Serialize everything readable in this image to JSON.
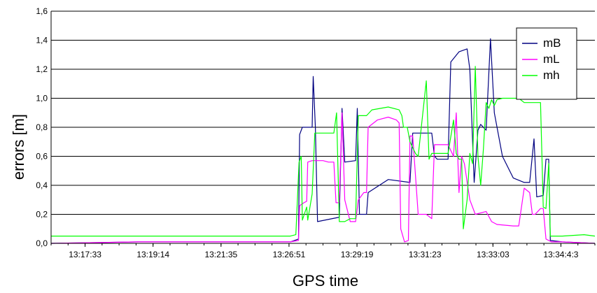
{
  "chart_data": {
    "type": "line",
    "xlabel": "GPS time",
    "ylabel": "errors [m]",
    "ylim": [
      0,
      1.6
    ],
    "yticks": [
      "0,0",
      "0,2",
      "0,4",
      "0,6",
      "0,8",
      "1,0",
      "1,2",
      "1,4",
      "1,6"
    ],
    "xticks": [
      "13:17:33",
      "13:19:14",
      "13:21:35",
      "13:26:51",
      "13:29:19",
      "13:31:23",
      "13:33:03",
      "13:34:4:3"
    ],
    "grid": "horizontal",
    "legend_position": "top-right",
    "series": [
      {
        "name": "mB",
        "color": "#000080",
        "points": [
          [
            0,
            0
          ],
          [
            0.16,
            0.01
          ],
          [
            0.44,
            0.01
          ],
          [
            0.455,
            0.03
          ],
          [
            0.457,
            0.75
          ],
          [
            0.462,
            0.8
          ],
          [
            0.48,
            0.8
          ],
          [
            0.482,
            1.15
          ],
          [
            0.486,
            0.8
          ],
          [
            0.49,
            0.15
          ],
          [
            0.53,
            0.18
          ],
          [
            0.535,
            0.93
          ],
          [
            0.54,
            0.56
          ],
          [
            0.56,
            0.57
          ],
          [
            0.563,
            0.93
          ],
          [
            0.567,
            0.2
          ],
          [
            0.58,
            0.2
          ],
          [
            0.583,
            0.35
          ],
          [
            0.62,
            0.44
          ],
          [
            0.66,
            0.42
          ],
          [
            0.665,
            0.76
          ],
          [
            0.7,
            0.76
          ],
          [
            0.705,
            0.6
          ],
          [
            0.71,
            0.58
          ],
          [
            0.73,
            0.58
          ],
          [
            0.735,
            1.25
          ],
          [
            0.75,
            1.32
          ],
          [
            0.765,
            1.34
          ],
          [
            0.77,
            1.2
          ],
          [
            0.778,
            0.42
          ],
          [
            0.785,
            0.78
          ],
          [
            0.79,
            0.82
          ],
          [
            0.8,
            0.78
          ],
          [
            0.808,
            1.41
          ],
          [
            0.815,
            0.9
          ],
          [
            0.83,
            0.6
          ],
          [
            0.85,
            0.45
          ],
          [
            0.87,
            0.42
          ],
          [
            0.88,
            0.42
          ],
          [
            0.888,
            0.72
          ],
          [
            0.893,
            0.32
          ],
          [
            0.905,
            0.33
          ],
          [
            0.91,
            0.58
          ],
          [
            0.915,
            0.58
          ],
          [
            0.918,
            0.02
          ],
          [
            0.94,
            0.01
          ],
          [
            1,
            0
          ]
        ]
      },
      {
        "name": "mL",
        "color": "#ff00ff",
        "points": [
          [
            0,
            0
          ],
          [
            0.16,
            0.01
          ],
          [
            0.44,
            0.01
          ],
          [
            0.455,
            0.02
          ],
          [
            0.457,
            0.26
          ],
          [
            0.465,
            0.28
          ],
          [
            0.47,
            0.29
          ],
          [
            0.472,
            0.56
          ],
          [
            0.48,
            0.57
          ],
          [
            0.5,
            0.57
          ],
          [
            0.51,
            0.56
          ],
          [
            0.52,
            0.56
          ],
          [
            0.524,
            0.28
          ],
          [
            0.53,
            0.28
          ],
          [
            0.535,
            0.9
          ],
          [
            0.54,
            0.3
          ],
          [
            0.55,
            0.15
          ],
          [
            0.56,
            0.15
          ],
          [
            0.565,
            0.3
          ],
          [
            0.575,
            0.35
          ],
          [
            0.58,
            0.35
          ],
          [
            0.583,
            0.8
          ],
          [
            0.6,
            0.85
          ],
          [
            0.62,
            0.87
          ],
          [
            0.635,
            0.85
          ],
          [
            0.64,
            0.83
          ],
          [
            0.643,
            0.1
          ],
          [
            0.65,
            0.01
          ],
          [
            0.657,
            0.02
          ],
          [
            0.66,
            0.74
          ],
          [
            0.665,
            0.74
          ],
          [
            0.675,
            0.2
          ],
          [
            0.69,
            0.2
          ],
          [
            0.7,
            0.17
          ],
          [
            0.705,
            0.68
          ],
          [
            0.73,
            0.68
          ],
          [
            0.74,
            0.6
          ],
          [
            0.745,
            0.9
          ],
          [
            0.75,
            0.35
          ],
          [
            0.755,
            0.6
          ],
          [
            0.76,
            0.55
          ],
          [
            0.77,
            0.3
          ],
          [
            0.78,
            0.2
          ],
          [
            0.8,
            0.22
          ],
          [
            0.81,
            0.15
          ],
          [
            0.82,
            0.13
          ],
          [
            0.85,
            0.12
          ],
          [
            0.86,
            0.12
          ],
          [
            0.87,
            0.38
          ],
          [
            0.88,
            0.35
          ],
          [
            0.885,
            0.2
          ],
          [
            0.89,
            0.2
          ],
          [
            0.895,
            0.22
          ],
          [
            0.9,
            0.24
          ],
          [
            0.905,
            0.24
          ],
          [
            0.91,
            0.03
          ],
          [
            0.92,
            0.01
          ],
          [
            0.94,
            0.01
          ],
          [
            1,
            0
          ]
        ]
      },
      {
        "name": "mh",
        "color": "#00ff00",
        "points": [
          [
            0,
            0.05
          ],
          [
            0.16,
            0.05
          ],
          [
            0.44,
            0.05
          ],
          [
            0.45,
            0.06
          ],
          [
            0.456,
            0.56
          ],
          [
            0.46,
            0.6
          ],
          [
            0.462,
            0.16
          ],
          [
            0.47,
            0.25
          ],
          [
            0.472,
            0.16
          ],
          [
            0.48,
            0.34
          ],
          [
            0.485,
            0.76
          ],
          [
            0.49,
            0.76
          ],
          [
            0.52,
            0.76
          ],
          [
            0.525,
            0.9
          ],
          [
            0.53,
            0.15
          ],
          [
            0.54,
            0.15
          ],
          [
            0.55,
            0.17
          ],
          [
            0.56,
            0.17
          ],
          [
            0.565,
            0.88
          ],
          [
            0.58,
            0.88
          ],
          [
            0.59,
            0.92
          ],
          [
            0.62,
            0.94
          ],
          [
            0.64,
            0.92
          ],
          [
            0.645,
            0.88
          ],
          [
            0.648,
            0.8
          ],
          [
            0.655,
            0.8
          ],
          [
            0.66,
            0.7
          ],
          [
            0.67,
            0.62
          ],
          [
            0.675,
            0.6
          ],
          [
            0.69,
            1.12
          ],
          [
            0.695,
            0.58
          ],
          [
            0.7,
            0.62
          ],
          [
            0.73,
            0.62
          ],
          [
            0.74,
            0.85
          ],
          [
            0.745,
            0.62
          ],
          [
            0.75,
            0.58
          ],
          [
            0.755,
            0.58
          ],
          [
            0.758,
            0.1
          ],
          [
            0.765,
            0.3
          ],
          [
            0.77,
            0.62
          ],
          [
            0.775,
            0.55
          ],
          [
            0.78,
            1.22
          ],
          [
            0.785,
            0.6
          ],
          [
            0.79,
            0.4
          ],
          [
            0.795,
            0.65
          ],
          [
            0.8,
            0.97
          ],
          [
            0.805,
            0.93
          ],
          [
            0.81,
            0.99
          ],
          [
            0.815,
            0.95
          ],
          [
            0.82,
            0.99
          ],
          [
            0.83,
            1.0
          ],
          [
            0.86,
            1.0
          ],
          [
            0.87,
            0.97
          ],
          [
            0.9,
            0.97
          ],
          [
            0.905,
            0.25
          ],
          [
            0.91,
            0.24
          ],
          [
            0.915,
            0.55
          ],
          [
            0.918,
            0.05
          ],
          [
            0.94,
            0.05
          ],
          [
            0.98,
            0.06
          ],
          [
            1,
            0.05
          ]
        ]
      }
    ]
  }
}
